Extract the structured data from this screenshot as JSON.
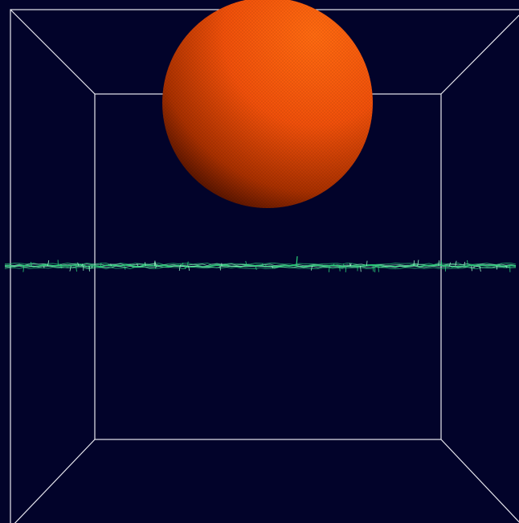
{
  "scene": {
    "background_color": "#02032a",
    "wireframe_box": {
      "color": "#e8e8f0"
    },
    "sphere": {
      "name": "orange-sphere",
      "color": "#ff5a0a",
      "shadow_color": "#3a0a00",
      "material": "tessellated-mesh"
    },
    "membrane_layer": {
      "name": "green-bilayer-strand",
      "color": "#2ad27a",
      "highlight_color": "#9af5c8"
    }
  }
}
